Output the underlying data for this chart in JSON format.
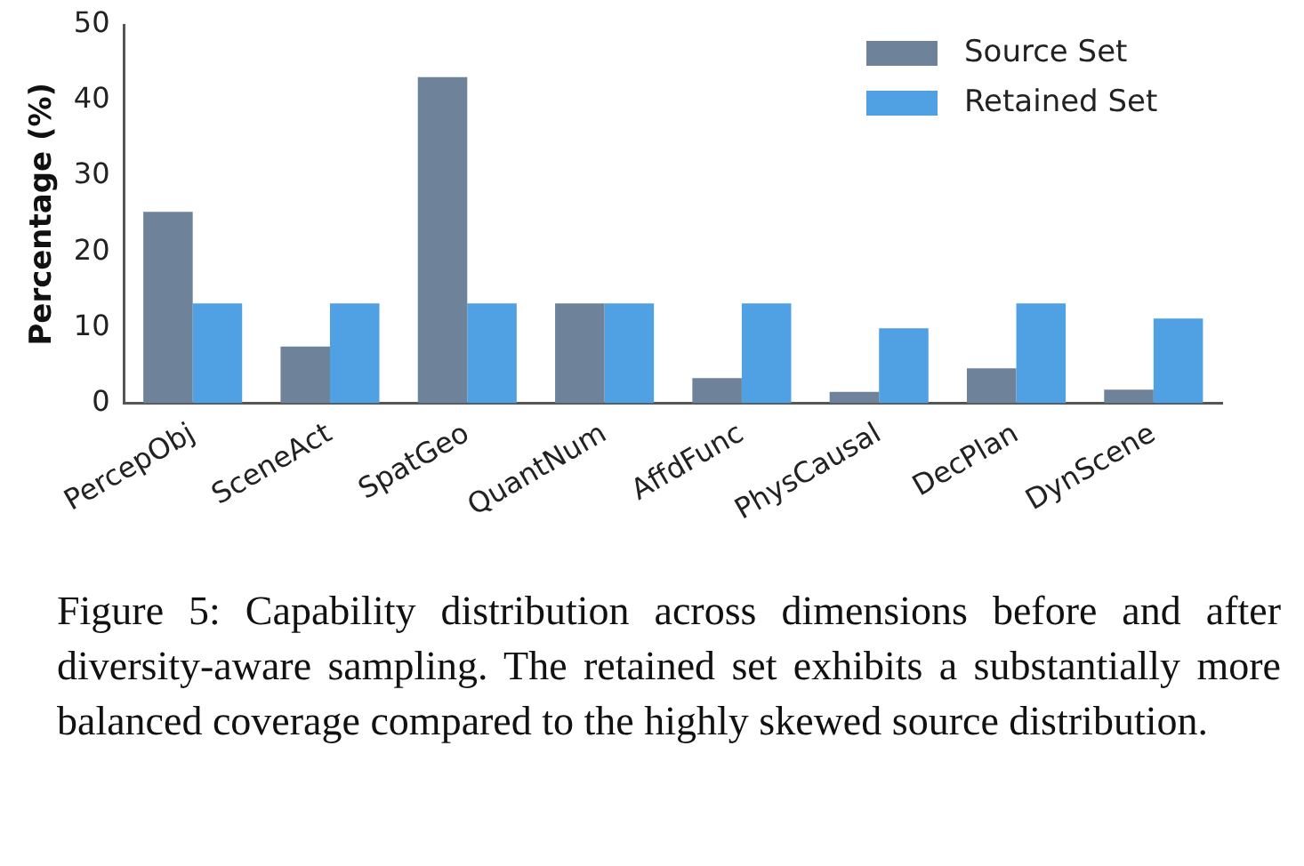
{
  "chart_data": {
    "type": "bar",
    "ylabel": "Percentage (%)",
    "categories": [
      "PercepObj",
      "SceneAct",
      "SpatGeo",
      "QuantNum",
      "AffdFunc",
      "PhysCausal",
      "DecPlan",
      "DynScene"
    ],
    "series": [
      {
        "name": "Source Set",
        "color": "#6e8399",
        "values": [
          25.3,
          7.5,
          43.1,
          13.2,
          3.3,
          1.5,
          4.6,
          1.8
        ]
      },
      {
        "name": "Retained Set",
        "color": "#4fa1e3",
        "values": [
          13.2,
          13.2,
          13.2,
          13.2,
          13.2,
          9.9,
          13.2,
          11.2
        ]
      }
    ],
    "ylim": [
      0,
      50
    ],
    "yticks": [
      0,
      10,
      20,
      30,
      40,
      50
    ],
    "grid": false,
    "legend": "top right",
    "annotations": [
      "Figure 5: Capability distribution across dimensions before and after diversity-aware sampling. The retained set exhibits a substantially more balanced coverage compared to the highly skewed source distribution."
    ]
  }
}
